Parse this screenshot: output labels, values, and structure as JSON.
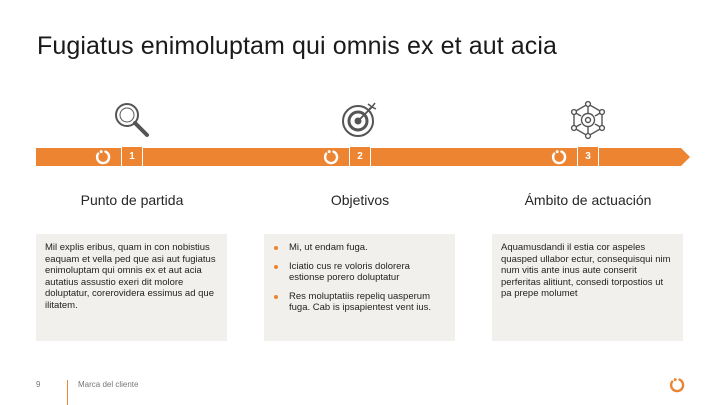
{
  "slide": {
    "title": "Fugiatus enimoluptam qui omnis ex et aut acia"
  },
  "steps": [
    {
      "number": "1",
      "icon": "magnifier-icon",
      "heading": "Punto de partida",
      "text": "Mil explis eribus, quam in con nobistius eaquam et vella ped que asi aut fugiatus enimoluptam qui omnis ex et aut acia autatius assustio exeri dit molore doluptatur, corerovidera essimus ad que ilitatem."
    },
    {
      "number": "2",
      "icon": "target-icon",
      "heading": "Objetivos",
      "bullets": [
        "Mi, ut endam fuga.",
        "Iciatio cus re voloris dolorera estionse porero doluptatur",
        "Res moluptatiis repeliq uasperum fuga. Cab is ipsapientest vent ius."
      ]
    },
    {
      "number": "3",
      "icon": "network-gear-icon",
      "heading": "Ámbito de actuación",
      "text": "Aquamusdandi il estia cor aspeles quasped ullabor ectur, consequisqui nim num vitis ante inus aute conserit perferitas alitiunt, consedi torpostios ut pa prepe molumet"
    }
  ],
  "footer": {
    "page_number": "9",
    "brand": "Marca del cliente"
  },
  "colors": {
    "accent": "#ec8432",
    "card_bg": "#f2f0ec",
    "icon_stroke": "#555555"
  }
}
